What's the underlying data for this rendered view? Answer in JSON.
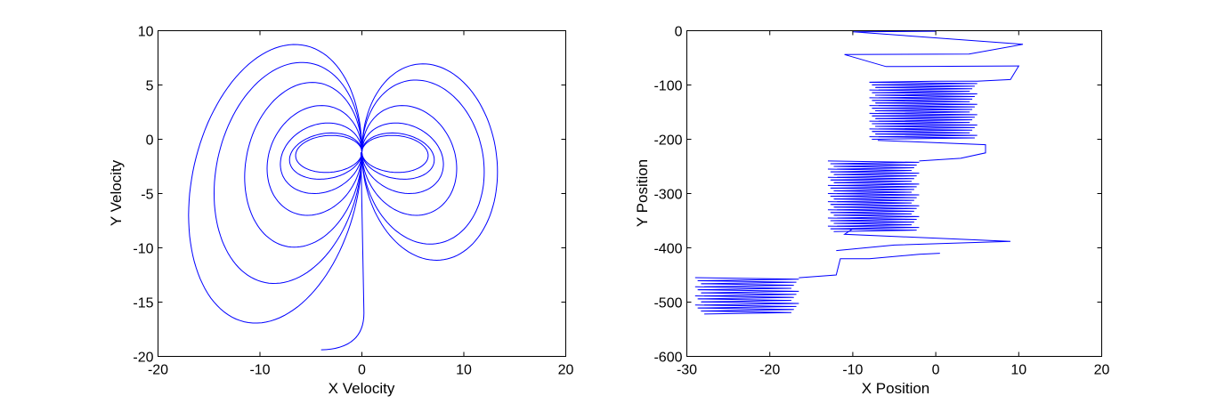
{
  "figure": {
    "background": "#ffffff",
    "line_color": "#0000ff"
  },
  "chart_data": [
    {
      "type": "line",
      "title": "",
      "xlabel": "X Velocity",
      "ylabel": "Y Velocity",
      "xlim": [
        -20,
        20
      ],
      "ylim": [
        -20,
        10
      ],
      "xticks": [
        -20,
        -10,
        0,
        10,
        20
      ],
      "yticks": [
        -20,
        -15,
        -10,
        -5,
        0,
        5,
        10
      ],
      "grid": false,
      "legend": "none",
      "series": [
        {
          "color": "#0000ff",
          "description_points": "figure-eight velocity orbit with looping lobes",
          "lobes": [
            {
              "cx": -4.5,
              "cy": -1.5,
              "rx": 2.0,
              "ry": 1.7
            },
            {
              "cx": 4.5,
              "cy": -1.5,
              "rx": 2.0,
              "ry": 1.7
            },
            {
              "cx": -4.7,
              "cy": -1.9,
              "rx": 2.4,
              "ry": 2.1
            },
            {
              "cx": 4.7,
              "cy": -1.9,
              "rx": 2.4,
              "ry": 2.1
            },
            {
              "cx": -5.0,
              "cy": -2.3,
              "rx": 3.0,
              "ry": 3.2
            },
            {
              "cx": 5.0,
              "cy": -2.3,
              "rx": 3.0,
              "ry": 3.2
            },
            {
              "cx": -5.3,
              "cy": -2.7,
              "rx": 4.0,
              "ry": 5.0
            },
            {
              "cx": 5.3,
              "cy": -2.7,
              "rx": 4.0,
              "ry": 5.0
            },
            {
              "cx": -6.0,
              "cy": -3.5,
              "rx": 5.5,
              "ry": 7.5
            },
            {
              "cx": 6.0,
              "cy": -3.0,
              "rx": 6.0,
              "ry": 7.5
            },
            {
              "cx": -7.0,
              "cy": -5.0,
              "rx": 7.5,
              "ry": 10.0
            },
            {
              "cx": 6.8,
              "cy": -3.0,
              "rx": 6.5,
              "ry": 9.0
            },
            {
              "cx": -8.5,
              "cy": -7.0,
              "rx": 8.5,
              "ry": 12.5
            }
          ]
        }
      ]
    },
    {
      "type": "line",
      "title": "",
      "xlabel": "X Position",
      "ylabel": "Y Position",
      "xlim": [
        -30,
        20
      ],
      "ylim": [
        -600,
        0
      ],
      "xticks": [
        -30,
        -20,
        -10,
        0,
        10,
        20
      ],
      "yticks": [
        -600,
        -500,
        -400,
        -300,
        -200,
        -100,
        0
      ],
      "grid": false,
      "legend": "none",
      "series": [
        {
          "color": "#0000ff",
          "blocks": [
            {
              "x_left": -29,
              "x_right": -16.5,
              "y_top": -455,
              "y_bottom": -522,
              "lines": 12
            },
            {
              "x_left": -13,
              "x_right": -2,
              "y_top": -240,
              "y_bottom": -370,
              "lines": 26
            },
            {
              "x_left": -8,
              "x_right": 5,
              "y_top": -95,
              "y_bottom": -200,
              "lines": 22
            }
          ],
          "connectors": [
            [
              [
                -16.5,
                -455
              ],
              [
                -12,
                -450
              ],
              [
                -11.5,
                -420
              ],
              [
                -8,
                -420
              ],
              [
                -2,
                -412
              ],
              [
                0.5,
                -410
              ]
            ],
            [
              [
                -12,
                -405
              ],
              [
                -5,
                -395
              ],
              [
                9,
                -388
              ],
              [
                -11,
                -375
              ],
              [
                -10,
                -365
              ]
            ],
            [
              [
                -2,
                -240
              ],
              [
                3,
                -235
              ],
              [
                6,
                -225
              ],
              [
                6,
                -210
              ],
              [
                -7,
                -202
              ]
            ],
            [
              [
                -8,
                -95
              ],
              [
                0,
                -93
              ],
              [
                5,
                -93
              ],
              [
                9,
                -90
              ],
              [
                10,
                -65
              ],
              [
                -6,
                -66
              ],
              [
                -11,
                -44
              ],
              [
                4,
                -43
              ],
              [
                10.5,
                -25
              ],
              [
                -10,
                -2
              ],
              [
                0,
                -1
              ]
            ]
          ]
        }
      ]
    }
  ]
}
